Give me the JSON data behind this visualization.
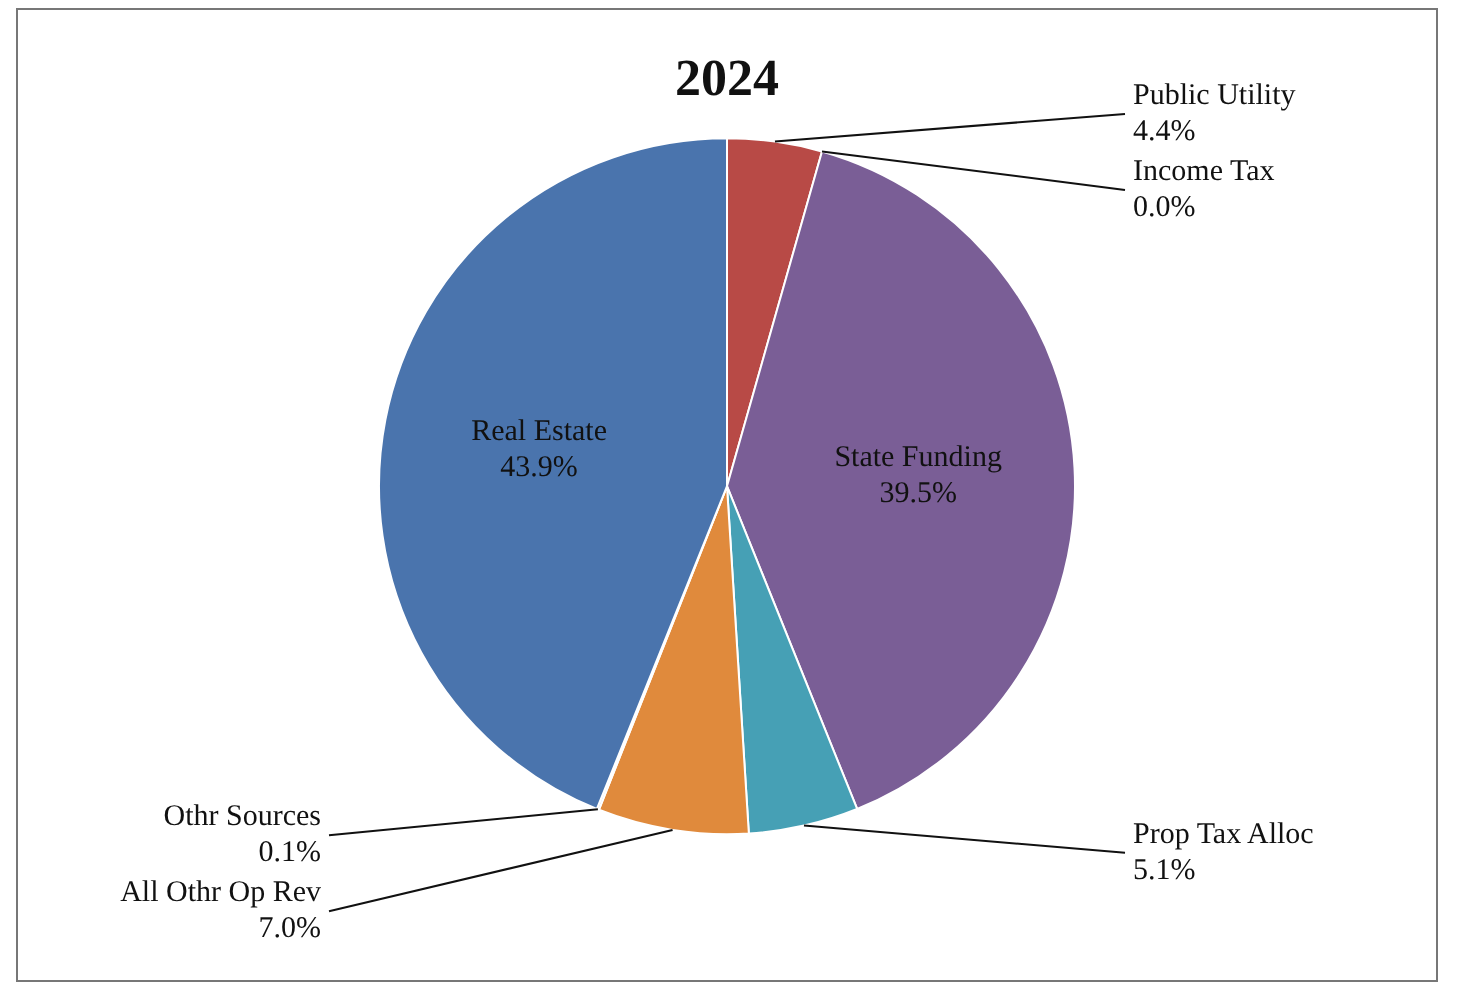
{
  "chart_data": {
    "type": "pie",
    "title": "2024",
    "categories": [
      "Public Utility",
      "Income Tax",
      "State Funding",
      "Prop Tax Alloc",
      "All Othr Op Rev",
      "Othr Sources",
      "Real Estate"
    ],
    "values": [
      4.4,
      0.0,
      39.5,
      5.1,
      7.0,
      0.1,
      43.9
    ],
    "value_labels": [
      "4.4%",
      "0.0%",
      "39.5%",
      "5.1%",
      "7.0%",
      "0.1%",
      "43.9%"
    ],
    "colors": [
      "#b84a46",
      "#8fb04f",
      "#7a5e96",
      "#46a0b5",
      "#e08a3c",
      "#9fb8d9",
      "#4a74ad"
    ],
    "legend": false
  }
}
